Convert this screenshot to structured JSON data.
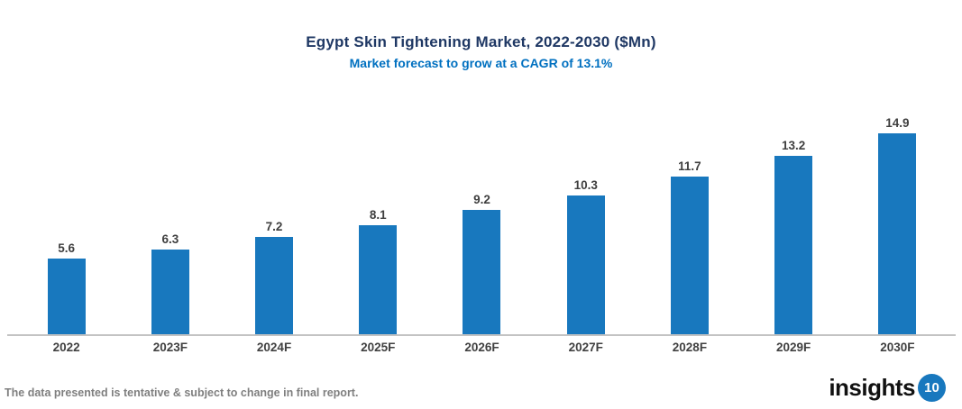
{
  "header": {
    "title": "Egypt Skin Tightening Market, 2022-2030 ($Mn)",
    "subtitle": "Market forecast to grow at a CAGR of 13.1%"
  },
  "chart_data": {
    "type": "bar",
    "categories": [
      "2022",
      "2023F",
      "2024F",
      "2025F",
      "2026F",
      "2027F",
      "2028F",
      "2029F",
      "2030F"
    ],
    "values": [
      5.6,
      6.3,
      7.2,
      8.1,
      9.2,
      10.3,
      11.7,
      13.2,
      14.9
    ],
    "title": "Egypt Skin Tightening Market, 2022-2030 ($Mn)",
    "subtitle": "Market forecast to grow at a CAGR of 13.1%",
    "xlabel": "",
    "ylabel": "",
    "ylim": [
      0,
      16.5
    ],
    "grid": false,
    "legend": "none",
    "value_labels_shown": true,
    "bar_color": "#1878be"
  },
  "footer": {
    "note": "The data presented is tentative & subject to change in final report.",
    "logo": {
      "text": "insights",
      "badge": "10"
    }
  },
  "colors": {
    "title": "#1f3864",
    "subtitle": "#0070c0",
    "bar": "#1878be",
    "value_label": "#3f3f3f",
    "axis_label": "#404040",
    "axis_line": "#c3c3c3",
    "footer_note": "#7f7f7f",
    "logo_badge_bg": "#1878be",
    "logo_badge_text": "#ffffff"
  }
}
